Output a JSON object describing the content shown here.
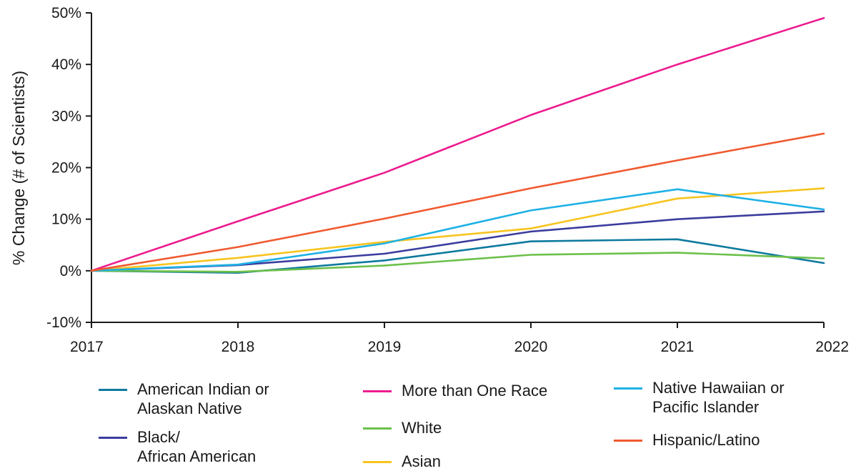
{
  "chart_data": {
    "type": "line",
    "xlabel": "",
    "ylabel": "% Change (# of Scientists)",
    "x": [
      "2017",
      "2018",
      "2019",
      "2020",
      "2021",
      "2022"
    ],
    "yticks": [
      "-10%",
      "0%",
      "10%",
      "20%",
      "30%",
      "40%",
      "50%"
    ],
    "ylim": [
      -10,
      50
    ],
    "grid": false,
    "legend_position": "bottom",
    "series": [
      {
        "name": "American Indian or\nAlaskan Native",
        "color": "#0e7a9e",
        "values": [
          0,
          -0.4,
          2.0,
          5.7,
          6.1,
          1.5
        ]
      },
      {
        "name": "Black/\nAfrican American",
        "color": "#3b3d9e",
        "values": [
          0,
          1.1,
          3.3,
          7.6,
          10.0,
          11.5
        ]
      },
      {
        "name": "More than One Race",
        "color": "#ec1b8f",
        "values": [
          0,
          9.6,
          19.0,
          30.2,
          40.0,
          49.0
        ]
      },
      {
        "name": "White",
        "color": "#6cc04a",
        "values": [
          0,
          -0.2,
          1.0,
          3.1,
          3.5,
          2.4
        ]
      },
      {
        "name": "Asian",
        "color": "#f7c41f",
        "values": [
          0,
          2.5,
          5.6,
          8.2,
          14.0,
          16.0
        ]
      },
      {
        "name": "Native Hawaiian or\nPacific Islander",
        "color": "#1fb1e6",
        "values": [
          0,
          1.2,
          5.3,
          11.7,
          15.8,
          11.9
        ]
      },
      {
        "name": "Hispanic/Latino",
        "color": "#f05a30",
        "values": [
          0,
          4.6,
          10.1,
          16.0,
          21.4,
          26.6
        ]
      }
    ]
  }
}
